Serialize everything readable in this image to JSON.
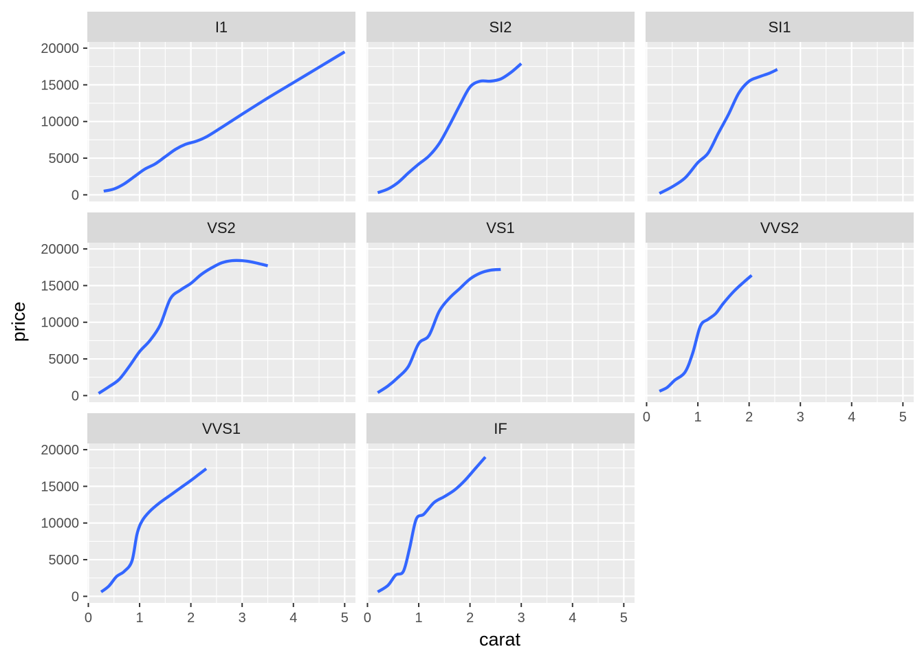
{
  "chart_data": {
    "type": "line",
    "xlabel": "carat",
    "ylabel": "price",
    "xlim": [
      -0.02,
      5.21
    ],
    "ylim": [
      -900,
      20850
    ],
    "x_ticks": [
      0,
      1,
      2,
      3,
      4,
      5
    ],
    "y_ticks": [
      0,
      5000,
      10000,
      15000,
      20000
    ],
    "grid": true,
    "legend": "none",
    "colors": {
      "line": "#3366FF",
      "panel_background": "#EBEBEB",
      "strip_background": "#D9D9D9",
      "grid": "#FFFFFF"
    },
    "facets": [
      {
        "name": "I1",
        "points": [
          [
            0.3,
            500
          ],
          [
            0.5,
            800
          ],
          [
            0.7,
            1500
          ],
          [
            0.9,
            2500
          ],
          [
            1.1,
            3500
          ],
          [
            1.3,
            4200
          ],
          [
            1.5,
            5200
          ],
          [
            1.7,
            6200
          ],
          [
            1.9,
            6900
          ],
          [
            2.1,
            7300
          ],
          [
            2.3,
            7900
          ],
          [
            2.6,
            9200
          ],
          [
            3.0,
            11000
          ],
          [
            3.5,
            13200
          ],
          [
            4.0,
            15300
          ],
          [
            4.5,
            17400
          ],
          [
            5.0,
            19500
          ]
        ]
      },
      {
        "name": "SI2",
        "points": [
          [
            0.2,
            300
          ],
          [
            0.4,
            800
          ],
          [
            0.6,
            1700
          ],
          [
            0.8,
            3000
          ],
          [
            1.0,
            4200
          ],
          [
            1.2,
            5300
          ],
          [
            1.4,
            7000
          ],
          [
            1.6,
            9500
          ],
          [
            1.8,
            12200
          ],
          [
            2.0,
            14700
          ],
          [
            2.2,
            15500
          ],
          [
            2.4,
            15500
          ],
          [
            2.6,
            15800
          ],
          [
            2.8,
            16700
          ],
          [
            3.0,
            17900
          ]
        ]
      },
      {
        "name": "SI1",
        "points": [
          [
            0.25,
            200
          ],
          [
            0.5,
            1100
          ],
          [
            0.75,
            2300
          ],
          [
            1.0,
            4400
          ],
          [
            1.2,
            5700
          ],
          [
            1.4,
            8400
          ],
          [
            1.6,
            11000
          ],
          [
            1.8,
            13900
          ],
          [
            2.0,
            15500
          ],
          [
            2.2,
            16100
          ],
          [
            2.4,
            16600
          ],
          [
            2.55,
            17100
          ]
        ]
      },
      {
        "name": "VS2",
        "points": [
          [
            0.2,
            300
          ],
          [
            0.4,
            1200
          ],
          [
            0.6,
            2200
          ],
          [
            0.8,
            4000
          ],
          [
            1.0,
            6000
          ],
          [
            1.2,
            7500
          ],
          [
            1.4,
            9600
          ],
          [
            1.6,
            13200
          ],
          [
            1.8,
            14400
          ],
          [
            2.0,
            15300
          ],
          [
            2.2,
            16500
          ],
          [
            2.4,
            17400
          ],
          [
            2.6,
            18100
          ],
          [
            2.8,
            18400
          ],
          [
            3.0,
            18400
          ],
          [
            3.2,
            18200
          ],
          [
            3.5,
            17700
          ]
        ]
      },
      {
        "name": "VS1",
        "points": [
          [
            0.2,
            400
          ],
          [
            0.4,
            1300
          ],
          [
            0.6,
            2500
          ],
          [
            0.8,
            4000
          ],
          [
            1.0,
            7100
          ],
          [
            1.2,
            8200
          ],
          [
            1.4,
            11500
          ],
          [
            1.6,
            13300
          ],
          [
            1.8,
            14600
          ],
          [
            2.0,
            15900
          ],
          [
            2.2,
            16700
          ],
          [
            2.4,
            17100
          ],
          [
            2.6,
            17200
          ]
        ]
      },
      {
        "name": "VVS2",
        "points": [
          [
            0.25,
            600
          ],
          [
            0.4,
            1100
          ],
          [
            0.55,
            2100
          ],
          [
            0.75,
            3200
          ],
          [
            0.9,
            5800
          ],
          [
            1.05,
            9500
          ],
          [
            1.2,
            10400
          ],
          [
            1.35,
            11200
          ],
          [
            1.5,
            12600
          ],
          [
            1.7,
            14200
          ],
          [
            1.9,
            15500
          ],
          [
            2.05,
            16400
          ]
        ]
      },
      {
        "name": "VVS1",
        "points": [
          [
            0.25,
            600
          ],
          [
            0.4,
            1400
          ],
          [
            0.55,
            2700
          ],
          [
            0.7,
            3400
          ],
          [
            0.85,
            4800
          ],
          [
            0.95,
            8500
          ],
          [
            1.05,
            10300
          ],
          [
            1.2,
            11600
          ],
          [
            1.4,
            12800
          ],
          [
            1.6,
            13800
          ],
          [
            1.8,
            14800
          ],
          [
            2.0,
            15800
          ],
          [
            2.15,
            16600
          ],
          [
            2.3,
            17400
          ]
        ]
      },
      {
        "name": "IF",
        "points": [
          [
            0.2,
            600
          ],
          [
            0.4,
            1500
          ],
          [
            0.55,
            2900
          ],
          [
            0.7,
            3400
          ],
          [
            0.82,
            6500
          ],
          [
            0.95,
            10500
          ],
          [
            1.1,
            11200
          ],
          [
            1.3,
            12800
          ],
          [
            1.5,
            13600
          ],
          [
            1.7,
            14500
          ],
          [
            1.9,
            15800
          ],
          [
            2.1,
            17400
          ],
          [
            2.3,
            19000
          ]
        ]
      }
    ]
  }
}
